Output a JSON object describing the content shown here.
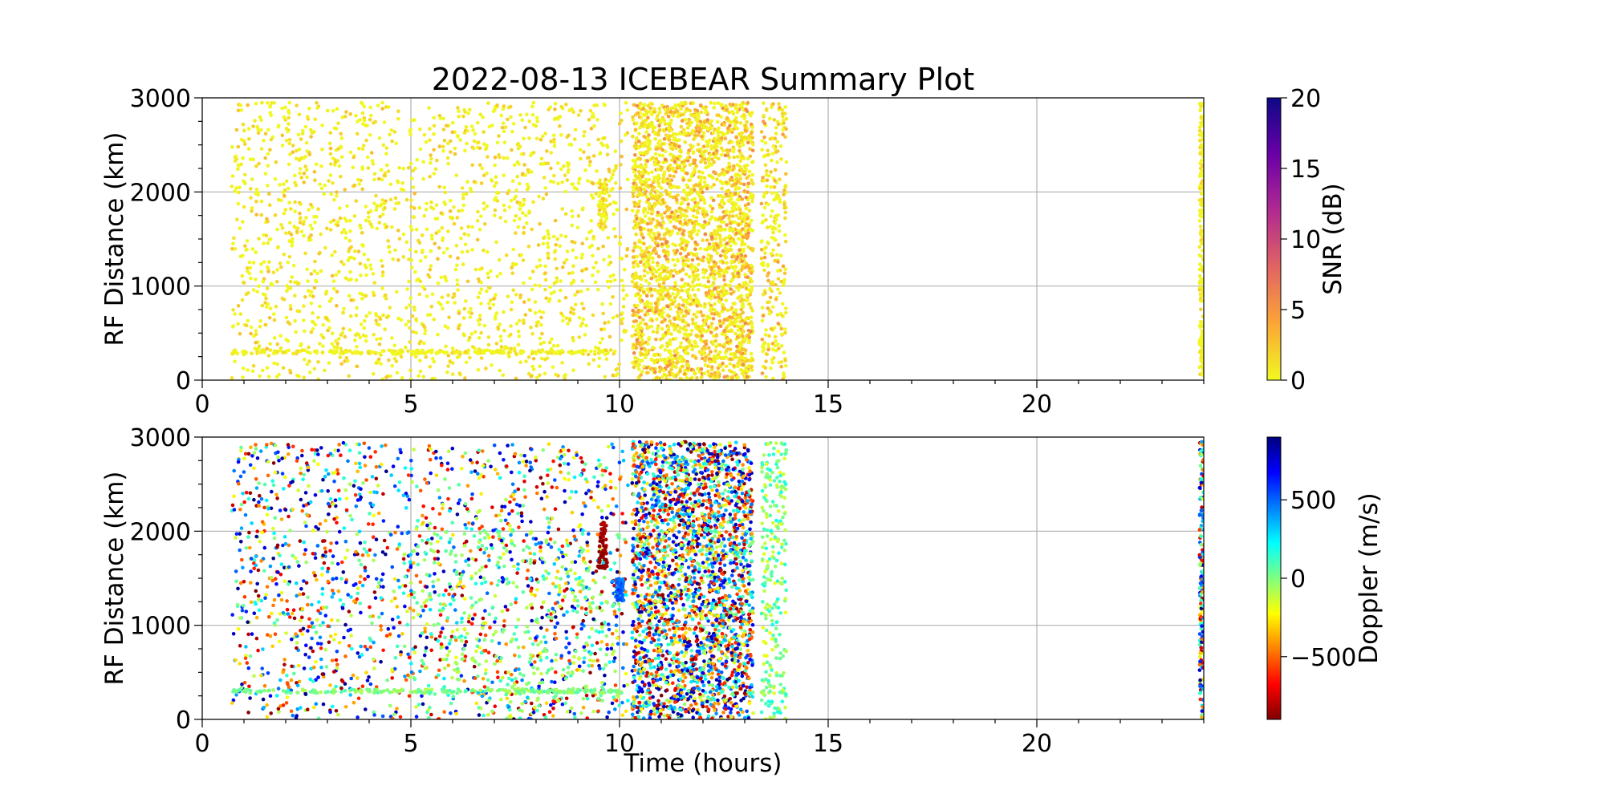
{
  "chart_data": [
    {
      "type": "scatter",
      "title": "2022-08-13 ICEBEAR Summary Plot",
      "xlabel": "",
      "ylabel": "RF Distance (km)",
      "xlim": [
        0,
        24
      ],
      "ylim": [
        0,
        3000
      ],
      "xticks": [
        "0",
        "5",
        "10",
        "15",
        "20"
      ],
      "yticks": [
        "0",
        "1000",
        "2000",
        "3000"
      ],
      "grid": true,
      "colorbar": {
        "label": "SNR (dB)",
        "colormap": "plasma_r",
        "range": [
          0,
          20
        ],
        "ticks": [
          "0",
          "5",
          "10",
          "15",
          "20"
        ],
        "colors": [
          "#f0f921",
          "#fca636",
          "#e16462",
          "#b12a90",
          "#6a00a8",
          "#0d0887"
        ]
      },
      "features": [
        {
          "x_range": [
            0.7,
            10.2
          ],
          "y_range": [
            0,
            2950
          ],
          "density": "moderate scatter",
          "value_range": [
            0,
            3
          ]
        },
        {
          "x_range": [
            0.7,
            10.0
          ],
          "y_range": [
            280,
            320
          ],
          "density": "line near 300 km",
          "value_range": [
            0,
            2
          ]
        },
        {
          "x_range": [
            9.5,
            9.7
          ],
          "y_range": [
            1600,
            2100
          ],
          "density": "short streak",
          "value_range": [
            0,
            3
          ]
        },
        {
          "x_range": [
            10.3,
            13.2
          ],
          "y_range": [
            0,
            2950
          ],
          "density": "dense band",
          "value_range": [
            0,
            6
          ]
        },
        {
          "x_range": [
            13.4,
            14.0
          ],
          "y_range": [
            0,
            2950
          ],
          "density": "sparse columns",
          "value_range": [
            0,
            5
          ]
        },
        {
          "x_range": [
            23.9,
            24.0
          ],
          "y_range": [
            0,
            2950
          ],
          "density": "thin column",
          "value_range": [
            0,
            2
          ]
        }
      ]
    },
    {
      "type": "scatter",
      "title": "",
      "xlabel": "Time (hours)",
      "ylabel": "RF Distance (km)",
      "xlim": [
        0,
        24
      ],
      "ylim": [
        0,
        3000
      ],
      "xticks": [
        "0",
        "5",
        "10",
        "15",
        "20"
      ],
      "yticks": [
        "0",
        "1000",
        "2000",
        "3000"
      ],
      "grid": true,
      "colorbar": {
        "label": "Doppler (m/s)",
        "colormap": "jet_r",
        "range": [
          -900,
          900
        ],
        "ticks": [
          "−500",
          "0",
          "500"
        ],
        "tick_values": [
          -500,
          0,
          500
        ],
        "colors": [
          "#800000",
          "#ff0000",
          "#ff8000",
          "#ffff00",
          "#80ff80",
          "#00ffff",
          "#0080ff",
          "#0000ff",
          "#000080"
        ]
      },
      "features": [
        {
          "x_range": [
            0.7,
            10.2
          ],
          "y_range": [
            0,
            2950
          ],
          "density": "moderate scatter",
          "value_range": [
            -900,
            900
          ]
        },
        {
          "x_range": [
            0.7,
            10.0
          ],
          "y_range": [
            280,
            320
          ],
          "density": "line near 300 km",
          "value_range": [
            -100,
            100
          ]
        },
        {
          "x_range": [
            5.0,
            10.0
          ],
          "y_range": [
            0,
            2000
          ],
          "density": "green cloud",
          "value_range": [
            -150,
            150
          ]
        },
        {
          "x_range": [
            9.5,
            9.7
          ],
          "y_range": [
            1600,
            2100
          ],
          "density": "short streak",
          "value_range": [
            -900,
            -800
          ]
        },
        {
          "x_range": [
            9.9,
            10.1
          ],
          "y_range": [
            1250,
            1500
          ],
          "density": "short streak",
          "value_range": [
            400,
            600
          ]
        },
        {
          "x_range": [
            10.3,
            13.2
          ],
          "y_range": [
            0,
            2950
          ],
          "density": "dense band",
          "value_range": [
            -900,
            900
          ]
        },
        {
          "x_range": [
            13.4,
            14.0
          ],
          "y_range": [
            0,
            2950
          ],
          "density": "sparse columns",
          "value_range": [
            -200,
            200
          ]
        },
        {
          "x_range": [
            23.9,
            24.0
          ],
          "y_range": [
            0,
            2950
          ],
          "density": "thin column",
          "value_range": [
            -900,
            900
          ]
        }
      ]
    }
  ]
}
